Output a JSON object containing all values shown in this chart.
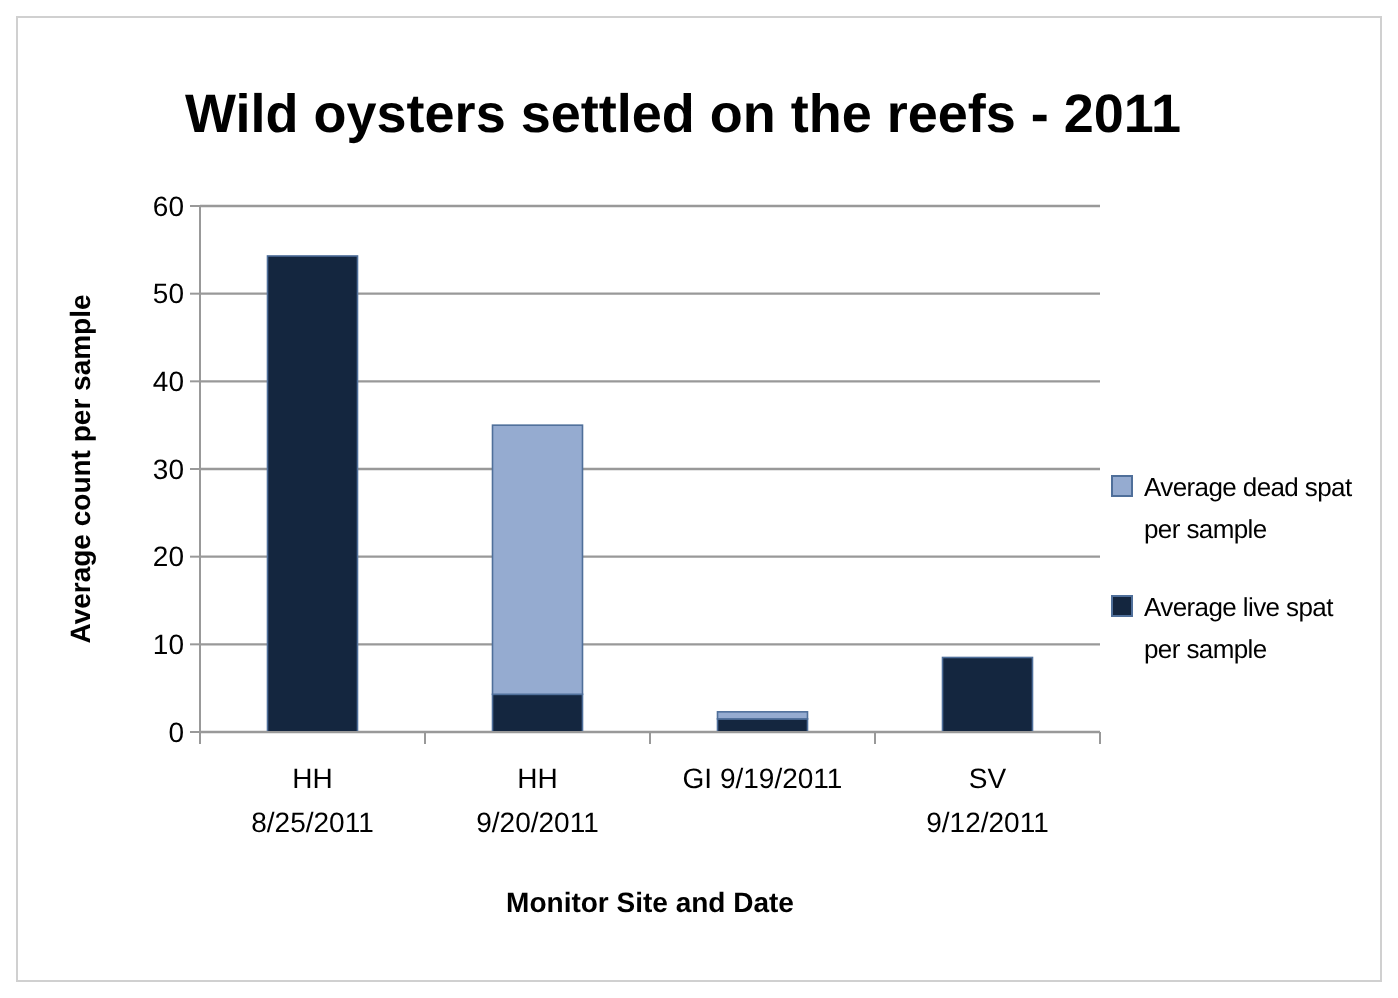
{
  "chart_data": {
    "type": "bar",
    "title": "Wild oysters settled on the reefs - 2011",
    "xlabel": "Monitor Site and Date",
    "ylabel": "Average count per sample",
    "categories": [
      "HH\n8/25/2011",
      "HH\n9/20/2011",
      "GI 9/19/2011",
      "SV\n9/12/2011"
    ],
    "series": [
      {
        "name": "Average live spat per sample",
        "color": "#14263f",
        "values": [
          54.3,
          4.3,
          1.5,
          8.5
        ]
      },
      {
        "name": "Average dead spat per sample",
        "color": "#95abd0",
        "values": [
          0,
          30.7,
          0.8,
          0
        ]
      }
    ],
    "stacked": true,
    "ylim": [
      0,
      60
    ],
    "yticks": [
      0,
      10,
      20,
      30,
      40,
      50,
      60
    ],
    "grid": "y",
    "legend": "right"
  }
}
